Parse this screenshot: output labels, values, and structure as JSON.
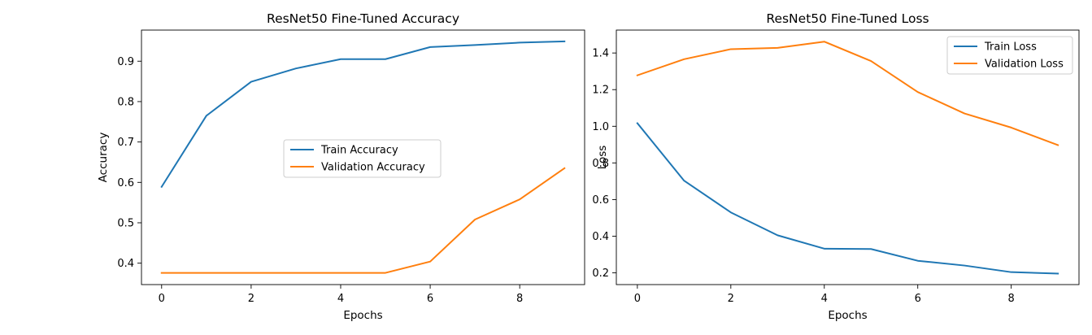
{
  "chart_data": [
    {
      "type": "line",
      "title": "ResNet50 Fine-Tuned Accuracy",
      "xlabel": "Epochs",
      "ylabel": "Accuracy",
      "xlim": [
        -0.45,
        9.45
      ],
      "ylim": [
        0.347,
        0.977
      ],
      "xticks": [
        0,
        2,
        4,
        6,
        8
      ],
      "yticks": [
        0.4,
        0.5,
        0.6,
        0.7,
        0.8,
        0.9
      ],
      "x": [
        0,
        1,
        2,
        3,
        4,
        5,
        6,
        7,
        8,
        9
      ],
      "series": [
        {
          "name": "Train Accuracy",
          "color": "#1f77b4",
          "values": [
            0.589,
            0.765,
            0.849,
            0.882,
            0.905,
            0.905,
            0.935,
            0.94,
            0.946,
            0.949
          ]
        },
        {
          "name": "Validation Accuracy",
          "color": "#ff7f0e",
          "values": [
            0.376,
            0.376,
            0.376,
            0.376,
            0.376,
            0.376,
            0.404,
            0.508,
            0.558,
            0.635
          ]
        }
      ],
      "legend": "center right",
      "grid": false
    },
    {
      "type": "line",
      "title": "ResNet50 Fine-Tuned Loss",
      "xlabel": "Epochs",
      "ylabel": "Loss",
      "xlim": [
        -0.45,
        9.45
      ],
      "ylim": [
        0.136,
        1.525
      ],
      "xticks": [
        0,
        2,
        4,
        6,
        8
      ],
      "yticks": [
        0.2,
        0.4,
        0.6,
        0.8,
        1.0,
        1.2,
        1.4
      ],
      "x": [
        0,
        1,
        2,
        3,
        4,
        5,
        6,
        7,
        8,
        9
      ],
      "series": [
        {
          "name": "Train Loss",
          "color": "#1f77b4",
          "values": [
            1.017,
            0.703,
            0.53,
            0.405,
            0.332,
            0.33,
            0.266,
            0.24,
            0.204,
            0.196
          ]
        },
        {
          "name": "Validation Loss",
          "color": "#ff7f0e",
          "values": [
            1.278,
            1.366,
            1.421,
            1.428,
            1.462,
            1.356,
            1.187,
            1.07,
            0.993,
            0.897
          ]
        }
      ],
      "legend": "top right",
      "grid": false
    }
  ]
}
